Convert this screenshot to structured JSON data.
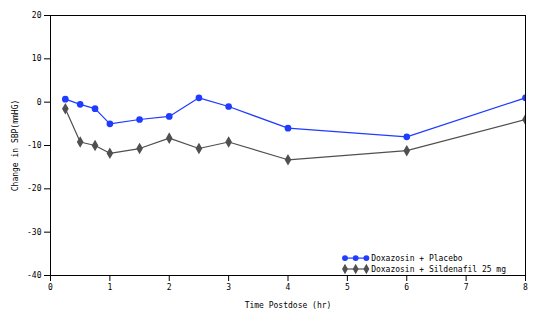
{
  "chart_data": {
    "type": "line",
    "xlabel": "Time Postdose (hr)",
    "ylabel": "Change in SBP(mmHG)",
    "x": [
      0.25,
      0.5,
      0.75,
      1,
      1.5,
      2,
      2.5,
      3,
      4,
      6,
      8
    ],
    "series": [
      {
        "name": "Doxazosin + Placebo",
        "color": "#1f3cff",
        "marker": "circle",
        "values": [
          0.7,
          -0.5,
          -1.5,
          -5,
          -4,
          -3.3,
          1,
          -1,
          -6,
          -8,
          1
        ]
      },
      {
        "name": "Doxazosin + Sildenafil 25 mg",
        "color": "#505050",
        "marker": "diamond",
        "values": [
          -1.5,
          -9.2,
          -10,
          -11.8,
          -10.7,
          -8.3,
          -10.7,
          -9.2,
          -13.3,
          -11.2,
          -4
        ]
      }
    ],
    "xlim": [
      0,
      8
    ],
    "xticks": [
      0,
      1,
      2,
      3,
      4,
      5,
      6,
      7,
      8
    ],
    "ylim": [
      -40,
      20
    ],
    "yticks": [
      -40,
      -30,
      -20,
      -10,
      0,
      10,
      20
    ],
    "grid": false,
    "legend": "lower right"
  }
}
